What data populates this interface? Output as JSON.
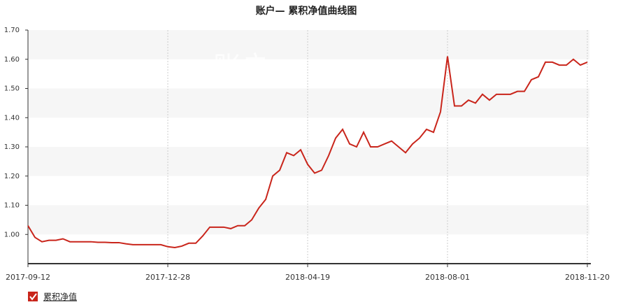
{
  "chart_data": {
    "type": "line",
    "title": "账户— 累积净值曲线图",
    "watermark": "账户一",
    "categories": [
      "2017-09-12",
      null,
      null,
      null,
      null,
      null,
      null,
      null,
      null,
      null,
      null,
      null,
      null,
      null,
      null,
      null,
      null,
      null,
      null,
      null,
      "2017-12-28",
      null,
      null,
      null,
      null,
      null,
      null,
      null,
      null,
      null,
      null,
      null,
      null,
      null,
      null,
      null,
      null,
      null,
      null,
      null,
      "2018-04-19",
      null,
      null,
      null,
      null,
      null,
      null,
      null,
      null,
      null,
      null,
      null,
      null,
      null,
      null,
      null,
      null,
      null,
      null,
      null,
      "2018-08-01",
      null,
      null,
      null,
      null,
      null,
      null,
      null,
      null,
      null,
      null,
      null,
      null,
      null,
      null,
      null,
      null,
      null,
      null,
      null,
      "2018-11-20"
    ],
    "series": [
      {
        "name": "累积净值",
        "color": "#c9251b",
        "values": [
          1.03,
          0.99,
          0.975,
          0.98,
          0.98,
          0.985,
          0.975,
          0.975,
          0.975,
          0.975,
          0.973,
          0.973,
          0.972,
          0.972,
          0.968,
          0.965,
          0.965,
          0.965,
          0.965,
          0.965,
          0.958,
          0.955,
          0.96,
          0.97,
          0.97,
          0.995,
          1.025,
          1.025,
          1.025,
          1.02,
          1.03,
          1.03,
          1.05,
          1.09,
          1.12,
          1.2,
          1.22,
          1.28,
          1.27,
          1.29,
          1.24,
          1.21,
          1.22,
          1.27,
          1.33,
          1.36,
          1.31,
          1.3,
          1.35,
          1.3,
          1.3,
          1.31,
          1.32,
          1.3,
          1.28,
          1.31,
          1.33,
          1.36,
          1.35,
          1.42,
          1.61,
          1.44,
          1.44,
          1.46,
          1.45,
          1.48,
          1.46,
          1.48,
          1.48,
          1.48,
          1.49,
          1.49,
          1.53,
          1.54,
          1.59,
          1.59,
          1.58,
          1.58,
          1.6,
          1.58,
          1.59
        ]
      }
    ],
    "ylim": [
      0.9,
      1.7
    ],
    "yticks": [
      {
        "value": 1.0,
        "label": "1.00"
      },
      {
        "value": 1.1,
        "label": "1.10"
      },
      {
        "value": 1.2,
        "label": "1.20"
      },
      {
        "value": 1.3,
        "label": "1.30"
      },
      {
        "value": 1.4,
        "label": "1.40"
      },
      {
        "value": 1.5,
        "label": "1.50"
      },
      {
        "value": 1.6,
        "label": "1.60"
      },
      {
        "value": 1.7,
        "label": "1.70"
      }
    ],
    "grid": true
  }
}
